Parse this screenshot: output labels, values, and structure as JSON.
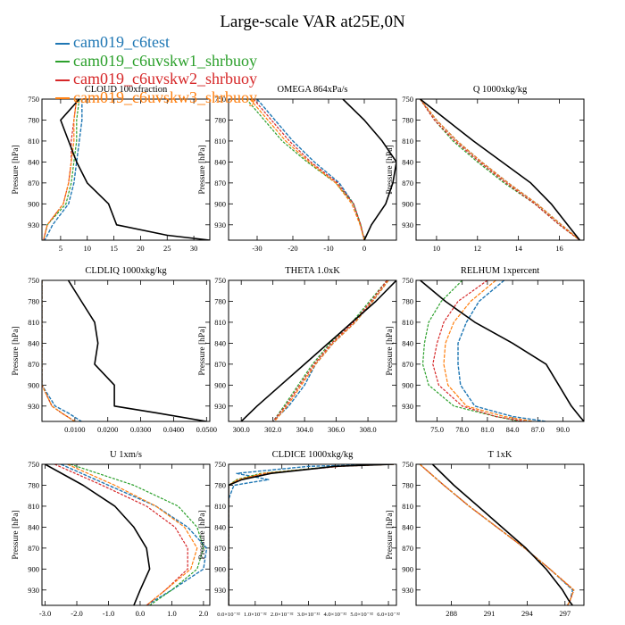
{
  "title": "Large-scale VAR at25E,0N",
  "legend": [
    {
      "name": "cam019_c6test",
      "color": "#1f77b4"
    },
    {
      "name": "cam019_c6uvskw1_shrbuoy",
      "color": "#2ca02c"
    },
    {
      "name": "cam019_c6uvskw2_shrbuoy",
      "color": "#d62728"
    },
    {
      "name": "cam019_c6uvskw3_shrbuoy",
      "color": "#ff7f0e"
    }
  ],
  "reference_color": "#000000",
  "ylabel": "Pressure [hPa]",
  "y_ticks": [
    750,
    780,
    810,
    840,
    870,
    900,
    930
  ],
  "ylim": [
    750,
    952
  ],
  "chart_data": [
    {
      "type": "line",
      "title": "CLOUD  100xfraction",
      "xlim": [
        1.5,
        33
      ],
      "x_ticks": [
        5,
        10,
        15,
        20,
        25,
        30
      ],
      "x_tick_labels": [
        "5",
        "10",
        "15",
        "20",
        "25",
        "30"
      ],
      "pressure": [
        750,
        780,
        810,
        840,
        870,
        900,
        930,
        945,
        952
      ],
      "series": {
        "ref": [
          8.5,
          5,
          6.5,
          8,
          10,
          14,
          15.5,
          25,
          33
        ],
        "s1": [
          9,
          9,
          8.5,
          8,
          7.5,
          6.5,
          3.5,
          2.5,
          2
        ],
        "s2": [
          8.5,
          8,
          8,
          7.5,
          7,
          6,
          2.5,
          2,
          1.8
        ],
        "s3": [
          8,
          7.5,
          7,
          7,
          6.5,
          5.5,
          2.5,
          2,
          1.8
        ],
        "s4": [
          8,
          7.5,
          7.5,
          7,
          6.5,
          5.5,
          2.5,
          2,
          1.8
        ]
      }
    },
    {
      "type": "line",
      "title": "OMEGA  864xPa/s",
      "xlim": [
        -38,
        9
      ],
      "x_ticks": [
        -30,
        -20,
        -10,
        0
      ],
      "x_tick_labels": [
        "-30",
        "-20",
        "-10",
        "0"
      ],
      "pressure": [
        750,
        780,
        810,
        840,
        870,
        900,
        930,
        952
      ],
      "series": {
        "ref": [
          -6,
          0,
          5,
          9,
          8,
          6,
          2,
          0
        ],
        "s1": [
          -30,
          -25,
          -20,
          -14,
          -7,
          -3,
          -1,
          0
        ],
        "s2": [
          -33,
          -28,
          -23,
          -16,
          -8,
          -3,
          -1,
          0
        ],
        "s3": [
          -31,
          -26,
          -21,
          -15,
          -7.5,
          -3,
          -1,
          0
        ],
        "s4": [
          -32,
          -27,
          -22,
          -15.5,
          -8,
          -3.5,
          -1.2,
          0
        ]
      }
    },
    {
      "type": "line",
      "title": "Q  1000xkg/kg",
      "xlim": [
        9,
        17.2
      ],
      "x_ticks": [
        10,
        12,
        14,
        16
      ],
      "x_tick_labels": [
        "10",
        "12",
        "14",
        "16"
      ],
      "pressure": [
        750,
        780,
        810,
        840,
        870,
        900,
        930,
        952
      ],
      "series": {
        "ref": [
          9.2,
          10.5,
          11.8,
          13.2,
          14.6,
          15.6,
          16.4,
          17
        ],
        "s1": [
          9.2,
          10,
          11,
          12.2,
          13.5,
          14.9,
          16.1,
          17
        ],
        "s2": [
          9.2,
          9.9,
          10.8,
          12,
          13.3,
          14.8,
          16,
          17
        ],
        "s3": [
          9.2,
          9.9,
          10.9,
          12.1,
          13.4,
          14.8,
          16,
          17
        ],
        "s4": [
          9.2,
          10,
          11,
          12.2,
          13.5,
          14.9,
          16.1,
          17
        ]
      }
    },
    {
      "type": "line",
      "title": "CLDLIQ  1000xkg/kg",
      "xlim": [
        0,
        0.051
      ],
      "x_ticks": [
        0.01,
        0.02,
        0.03,
        0.04,
        0.05
      ],
      "x_tick_labels": [
        "0.0100",
        "0.0200",
        "0.0300",
        "0.0400",
        "0.0500"
      ],
      "pressure": [
        750,
        780,
        810,
        840,
        870,
        900,
        930,
        940,
        952
      ],
      "series": {
        "ref": [
          0.008,
          0.012,
          0.016,
          0.017,
          0.016,
          0.022,
          0.022,
          0.035,
          0.05
        ],
        "s1": [
          0,
          0,
          0,
          0,
          0,
          0,
          0.004,
          0.008,
          0.012
        ],
        "s2": [
          0,
          0,
          0,
          0,
          0,
          0,
          0.003,
          0.006,
          0.01
        ],
        "s3": [
          0,
          0,
          0,
          0,
          0,
          0,
          0.003,
          0.006,
          0.01
        ],
        "s4": [
          0,
          0,
          0,
          0,
          0,
          0,
          0.003,
          0.006,
          0.01
        ]
      }
    },
    {
      "type": "line",
      "title": "THETA  1.0xK",
      "xlim": [
        299.2,
        309.8
      ],
      "x_ticks": [
        300,
        302,
        304,
        306,
        308
      ],
      "x_tick_labels": [
        "300.0",
        "302.0",
        "304.0",
        "306.0",
        "308.0"
      ],
      "pressure": [
        750,
        780,
        810,
        840,
        870,
        900,
        930,
        952
      ],
      "series": {
        "ref": [
          309.8,
          308.5,
          307,
          305.5,
          304,
          302.5,
          301,
          300
        ],
        "s1": [
          309.3,
          308.3,
          307.2,
          305.8,
          304.7,
          304,
          303,
          302
        ],
        "s2": [
          309.2,
          308.1,
          307,
          305.6,
          304.5,
          303.6,
          302.7,
          302
        ],
        "s3": [
          309.2,
          308.2,
          307.1,
          305.7,
          304.6,
          303.7,
          302.8,
          302
        ],
        "s4": [
          309.3,
          308.3,
          307.2,
          305.8,
          304.7,
          303.8,
          302.9,
          302.1
        ]
      }
    },
    {
      "type": "line",
      "title": "RELHUM  1xpercent",
      "xlim": [
        72.5,
        92.5
      ],
      "x_ticks": [
        75,
        78,
        81,
        84,
        87,
        90
      ],
      "x_tick_labels": [
        "75.0",
        "78.0",
        "81.0",
        "84.0",
        "87.0",
        "90.0"
      ],
      "pressure": [
        750,
        780,
        810,
        840,
        870,
        900,
        930,
        945,
        952
      ],
      "series": {
        "ref": [
          73,
          76,
          79.5,
          84,
          88,
          89.5,
          91,
          92,
          92.5
        ],
        "s1": [
          83,
          80,
          78.5,
          77.5,
          77.5,
          77.8,
          79.5,
          84,
          88
        ],
        "s2": [
          78,
          75.5,
          74,
          73.5,
          73.3,
          74,
          77,
          82,
          85
        ],
        "s3": [
          81,
          77.5,
          75.8,
          75,
          74.5,
          75.2,
          78,
          82,
          85.5
        ],
        "s4": [
          82,
          79,
          77,
          76,
          75.8,
          76.3,
          78.5,
          83,
          86.5
        ]
      }
    },
    {
      "type": "line",
      "title": "U  1xm/s",
      "xlim": [
        -3.1,
        2.2
      ],
      "x_ticks": [
        -3,
        -2,
        -1,
        0,
        1,
        2
      ],
      "x_tick_labels": [
        "-3.0",
        "-2.0",
        "-1.0",
        "0.0",
        "1.0",
        "2.0"
      ],
      "pressure": [
        750,
        780,
        810,
        840,
        870,
        900,
        930,
        952
      ],
      "series": {
        "ref": [
          -3,
          -1.8,
          -0.8,
          -0.2,
          0.2,
          0.3,
          0,
          -0.2
        ],
        "s1": [
          -2.5,
          -1,
          0.5,
          1.5,
          2.1,
          2,
          1,
          0.2
        ],
        "s2": [
          -2.2,
          -0.2,
          1.2,
          1.8,
          2,
          1.8,
          1,
          0.3
        ],
        "s3": [
          -2.7,
          -1.2,
          0.2,
          1.1,
          1.5,
          1.5,
          0.8,
          0.2
        ],
        "s4": [
          -2.3,
          -0.8,
          0.5,
          1.4,
          1.8,
          1.6,
          0.8,
          0.2
        ]
      }
    },
    {
      "type": "line",
      "title": "CLDICE  1000xkg/kg",
      "xlim": [
        0,
        6.3e-32
      ],
      "x_ticks": [
        0,
        1e-32,
        2e-32,
        3e-32,
        4e-32,
        5e-32,
        6e-32
      ],
      "x_tick_labels": [
        "0.0×10⁻³²",
        "1.0×10⁻³²",
        "2.0×10⁻³²",
        "3.0×10⁻³²",
        "4.0×10⁻³²",
        "5.0×10⁻³²",
        "6.0×10⁻³²"
      ],
      "pressure": [
        750,
        753,
        763,
        772,
        780,
        800,
        952
      ],
      "series": {
        "ref": [
          6.2e-32,
          4e-32,
          1.6e-32,
          5e-33,
          0,
          0,
          0
        ],
        "s1": [
          6.2e-32,
          3e-32,
          3e-33,
          1.5e-32,
          2e-33,
          0,
          0
        ],
        "s2": [
          6.2e-32,
          4e-32,
          1.2e-32,
          3e-33,
          0,
          0,
          0
        ],
        "s3": [
          6.2e-32,
          4.2e-32,
          1.4e-32,
          4e-33,
          0,
          0,
          0
        ],
        "s4": [
          6.2e-32,
          4.1e-32,
          1.3e-32,
          3.5e-33,
          0,
          0,
          0
        ]
      }
    },
    {
      "type": "line",
      "title": "T  1xK",
      "xlim": [
        285.2,
        298.5
      ],
      "x_ticks": [
        288,
        291,
        294,
        297
      ],
      "x_tick_labels": [
        "288",
        "291",
        "294",
        "297"
      ],
      "pressure": [
        750,
        780,
        810,
        840,
        870,
        900,
        930,
        945,
        952
      ],
      "series": {
        "ref": [
          286.5,
          288.2,
          290.1,
          292,
          293.9,
          295.5,
          296.8,
          297.3,
          297.6
        ],
        "s1": [
          285.5,
          287.4,
          289.4,
          291.6,
          293.8,
          295.8,
          297.6,
          297.4,
          297.2
        ],
        "s2": [
          285.5,
          287.4,
          289.4,
          291.6,
          293.8,
          295.8,
          297.7,
          297.4,
          297.2
        ],
        "s3": [
          285.5,
          287.4,
          289.4,
          291.6,
          293.8,
          295.8,
          297.7,
          297.4,
          297.2
        ],
        "s4": [
          285.5,
          287.4,
          289.4,
          291.6,
          293.8,
          295.8,
          297.7,
          297.4,
          297.2
        ]
      }
    }
  ]
}
